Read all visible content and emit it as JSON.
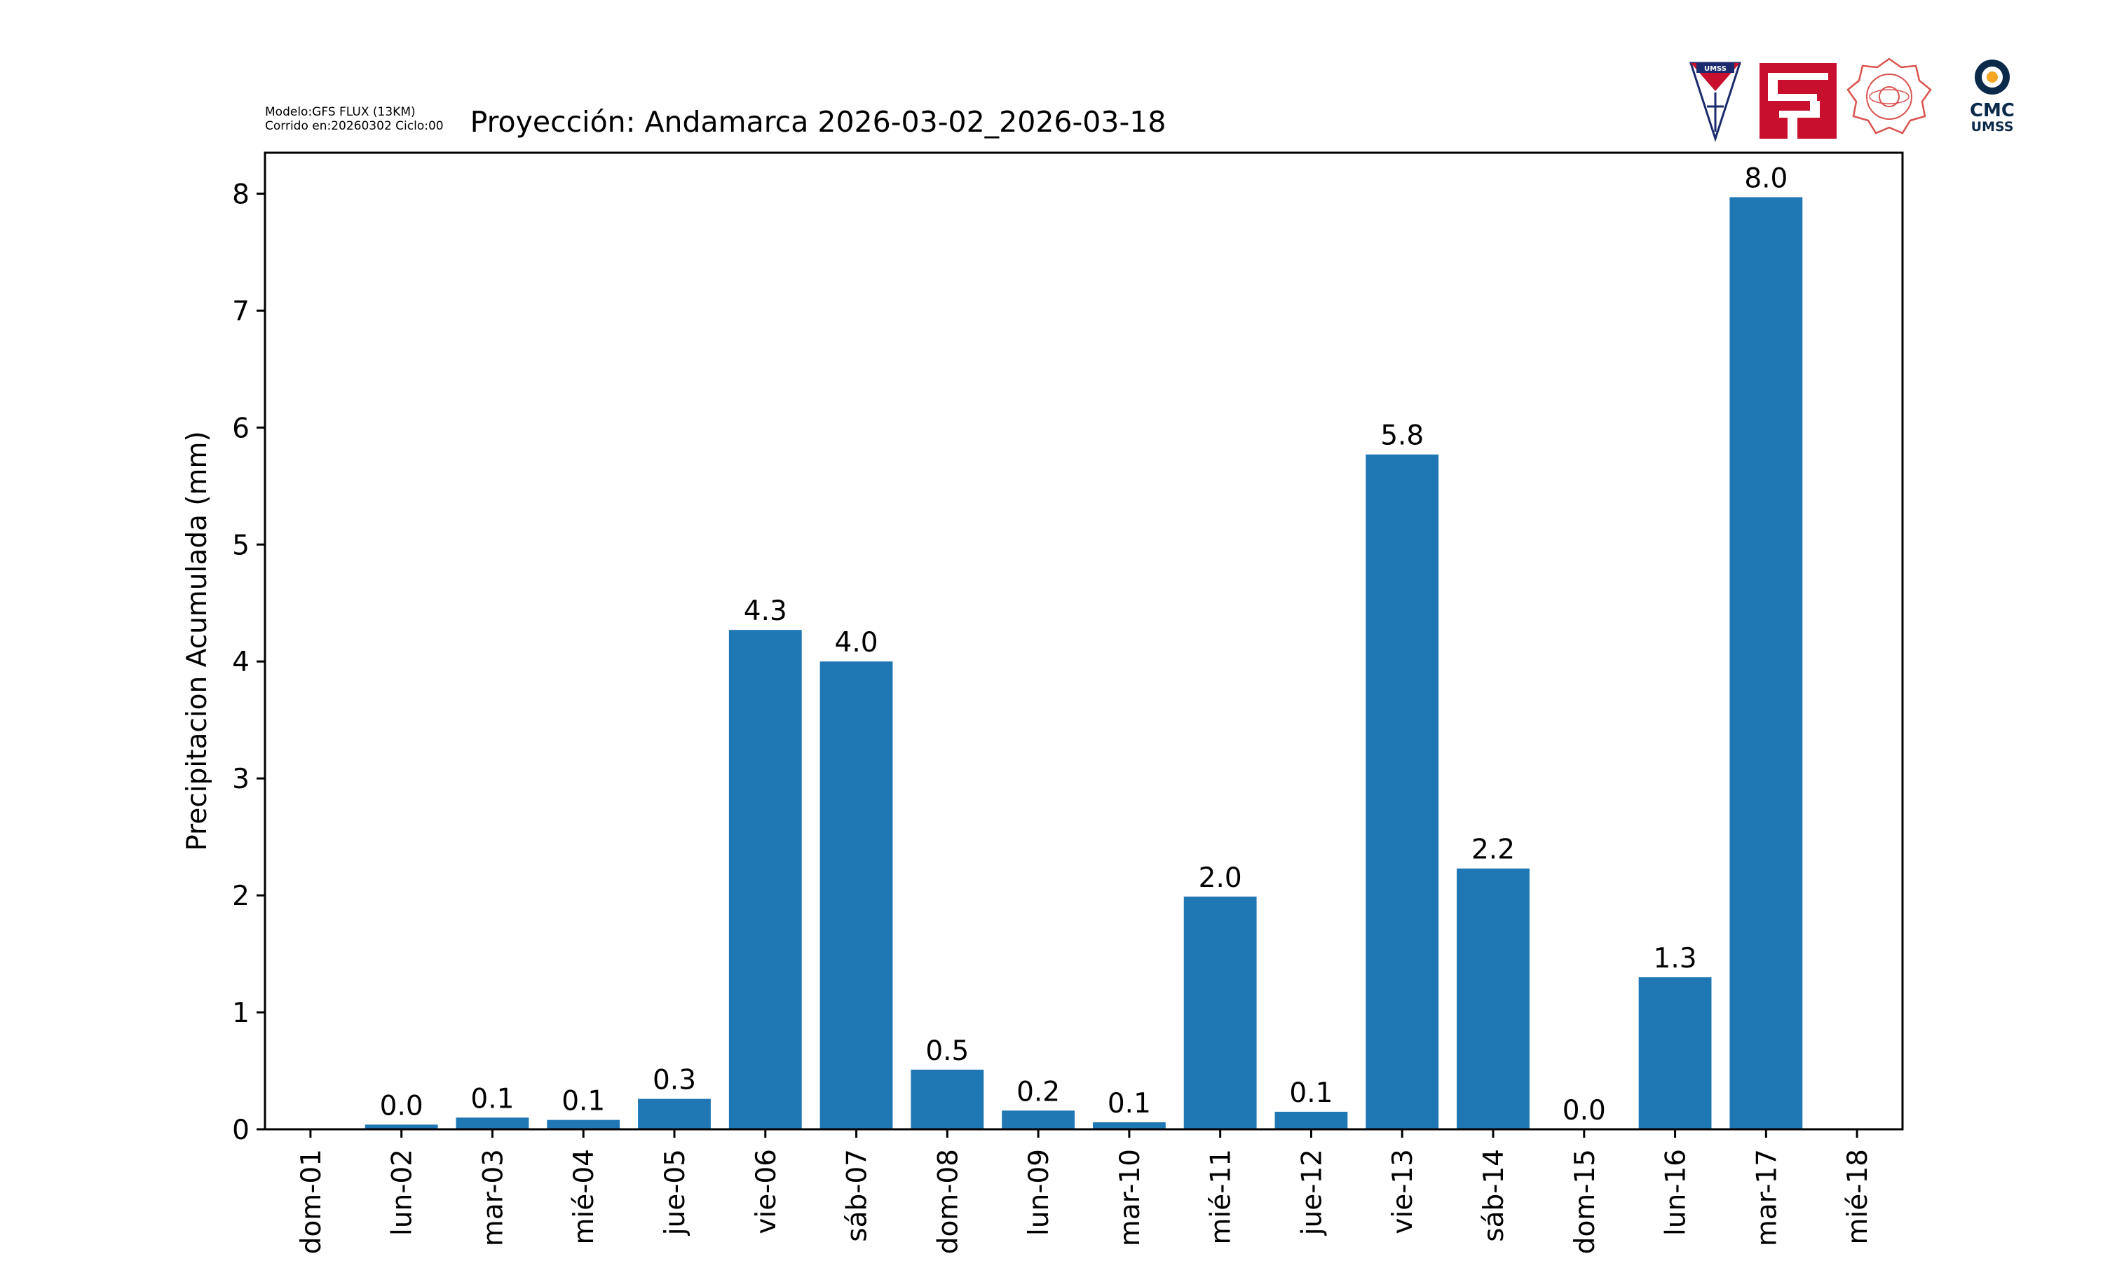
{
  "header": {
    "model_line": "Modelo:GFS FLUX (13KM)",
    "run_line": "Corrido en:20260302 Ciclo:00"
  },
  "logos": {
    "umss_text": "UMSS",
    "cmc_text": "CMC",
    "cmc_sub": "UMSS"
  },
  "chart_data": {
    "type": "bar",
    "title": "Proyección: Andamarca  2026-03-02_2026-03-18",
    "xlabel": "",
    "ylabel": "Precipitacion Acumulada (mm)",
    "ylim": [
      0,
      8.35
    ],
    "yticks": [
      0,
      1,
      2,
      3,
      4,
      5,
      6,
      7,
      8
    ],
    "x_tick_labels": [
      "dom-01",
      "lun-02",
      "mar-03",
      "mié-04",
      "jue-05",
      "vie-06",
      "sáb-07",
      "dom-08",
      "lun-09",
      "mar-10",
      "mié-11",
      "jue-12",
      "vie-13",
      "sáb-14",
      "dom-15",
      "lun-16",
      "mar-17",
      "mié-18"
    ],
    "categories": [
      "lun-02",
      "mar-03",
      "mié-04",
      "jue-05",
      "vie-06",
      "sáb-07",
      "dom-08",
      "lun-09",
      "mar-10",
      "mié-11",
      "jue-12",
      "vie-13",
      "sáb-14",
      "dom-15",
      "lun-16",
      "mar-17"
    ],
    "values": [
      0.04,
      0.1,
      0.08,
      0.26,
      4.27,
      4.0,
      0.51,
      0.16,
      0.06,
      1.99,
      0.15,
      5.77,
      2.23,
      0.0,
      1.3,
      7.97
    ],
    "labels": [
      "0.0",
      "0.1",
      "0.1",
      "0.3",
      "4.3",
      "4.0",
      "0.5",
      "0.2",
      "0.1",
      "2.0",
      "0.1",
      "5.8",
      "2.2",
      "0.0",
      "1.3",
      "8.0"
    ],
    "bar_color": "#1f77b4",
    "grid": false,
    "legend": "none"
  }
}
